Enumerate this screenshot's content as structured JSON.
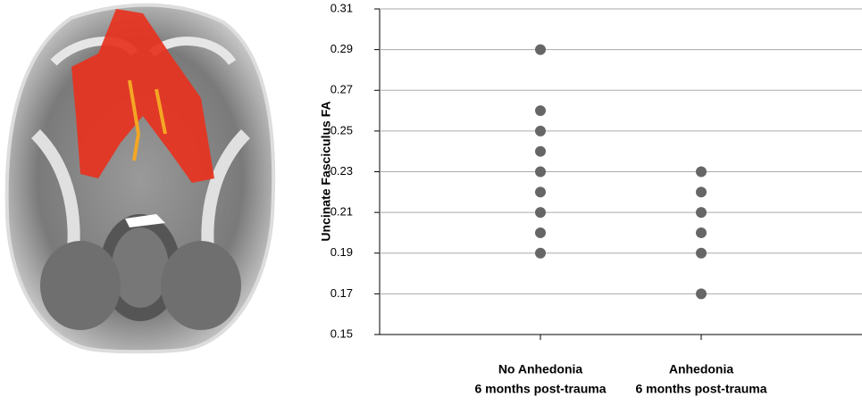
{
  "chart_data": {
    "type": "strip",
    "y_label": "Uncinate Fasciculus FA",
    "categories": [
      [
        "No Anhedonia",
        "6 months post-trauma"
      ],
      [
        "Anhedonia",
        "6 months post-trauma"
      ]
    ],
    "values": [
      [
        0.29,
        0.26,
        0.25,
        0.24,
        0.23,
        0.22,
        0.21,
        0.2,
        0.19
      ],
      [
        0.23,
        0.22,
        0.21,
        0.2,
        0.19,
        0.17
      ]
    ],
    "color": "#666666",
    "ylim": [
      0.15,
      0.31
    ],
    "yticks": [
      0.15,
      0.17,
      0.19,
      0.21,
      0.23,
      0.25,
      0.27,
      0.29,
      0.31
    ],
    "grid": true
  }
}
